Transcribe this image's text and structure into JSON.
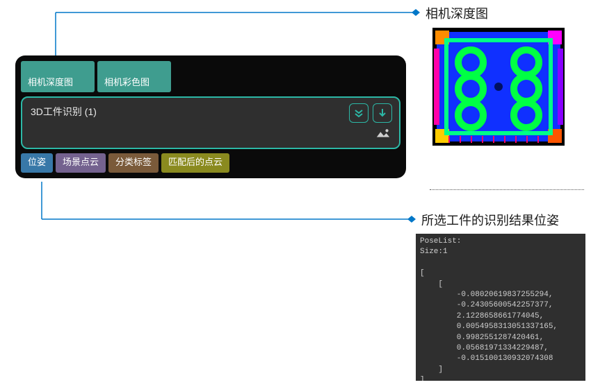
{
  "callouts": {
    "depth": "相机深度图",
    "pose": "所选工件的识别结果位姿"
  },
  "node": {
    "inputs": [
      {
        "type": "<Image/Depth>",
        "label": "相机深度图",
        "color": "#3f9d8f"
      },
      {
        "type": "<Image/Color>",
        "label": "相机彩色图",
        "color": "#3f9d8f"
      }
    ],
    "title": "3D工件识别 (1)",
    "outputs": [
      {
        "type": "<PoseList>",
        "label": "位姿",
        "color": "#3878a8"
      },
      {
        "type": "<Cloud(XYZ-RGB)>",
        "label": "场景点云",
        "color": "#74628f"
      },
      {
        "type": "<StringList>",
        "label": "分类标签",
        "color": "#7a5a3a"
      },
      {
        "type": "<Cloud(XYZ-Normal)>",
        "label": "匹配后的点云",
        "color": "#8a8a1f"
      }
    ],
    "border_color": "#2cb8a6",
    "body_bg": "#2f2f2f",
    "panel_bg": "#0a0a0a"
  },
  "poselist": {
    "header": "PoseList:",
    "size_label": "Size:1",
    "lines": [
      "[",
      "    [",
      "        -0.08020619837255294,",
      "        -0.24305600542257377,",
      "        2.1228658661774045,",
      "        0.0054958313051337165,",
      "        0.9982551287420461,",
      "        0.05681971334229487,",
      "        -0.015100130932074308",
      "    ]",
      "]"
    ],
    "bg": "#2f2f2f",
    "fg": "#cfcfcf"
  },
  "colors": {
    "connector": "#0077c8",
    "callout_text": "#1a1a1a"
  }
}
